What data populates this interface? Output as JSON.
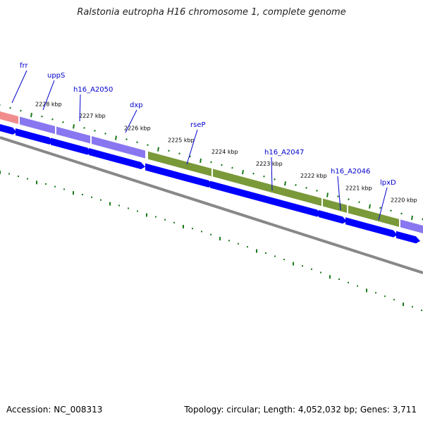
{
  "title": "Ralstonia eutropha H16 chromosome 1, complete genome",
  "footer": {
    "accession": "Accession: NC_008313",
    "topology": "Topology: circular; Length: 4,052,032 bp; Genes: 3,711"
  },
  "colors": {
    "ruler_tick": "#1a7a1a",
    "dots": "#1a7a1a",
    "gene_label": "#0000cc",
    "cds_arrow": "#0000ff",
    "backbone": "#888888"
  },
  "tick_labels": [
    "2228 kbp",
    "2227 kbp",
    "2226 kbp",
    "2225 kbp",
    "2224 kbp",
    "2223 kbp",
    "2222 kbp",
    "2221 kbp",
    "2220 kbp"
  ],
  "genes": [
    {
      "name": "frr",
      "color": "#f07f7f"
    },
    {
      "name": "uppS",
      "color": "#7b68ee"
    },
    {
      "name": "h16_A2050",
      "color": "#7b68ee"
    },
    {
      "name": "dxp",
      "color": "#7b68ee"
    },
    {
      "name": "rseP",
      "color": "#6b8e23"
    },
    {
      "name": "h16_A2047",
      "color": "#6b8e23"
    },
    {
      "name": "h16_A2046",
      "color": "#6b8e23"
    },
    {
      "name": "lpxD",
      "color": "#7b68ee"
    }
  ]
}
